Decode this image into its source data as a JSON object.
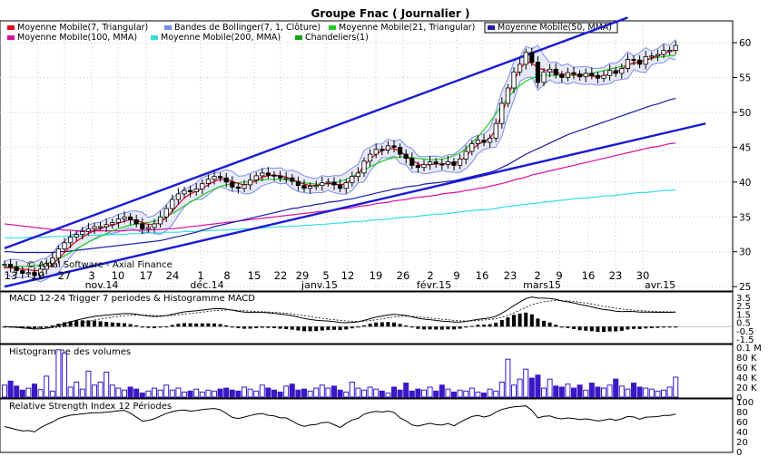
{
  "title": "Groupe Fnac  ( Journalier )",
  "watermark": "© Axial Software - Axial Finance",
  "legend": [
    {
      "label": "Moyenne Mobile(7, Triangular)",
      "color": "#e8001c",
      "selected": false
    },
    {
      "label": "Bandes de Bollinger(7, 1, Clôture)",
      "color": "#7a8ce8",
      "selected": false
    },
    {
      "label": "Moyenne Mobile(21, Triangular)",
      "color": "#22cc22",
      "selected": false
    },
    {
      "label": "Moyenne Mobile(50, MMA)",
      "color": "#1a1aa6",
      "selected": true
    },
    {
      "label": "Moyenne Mobile(100, MMA)",
      "color": "#d4119e",
      "selected": false
    },
    {
      "label": "Moyenne Mobile(200, MMA)",
      "color": "#33dde0",
      "selected": false
    },
    {
      "label": "Chandeliers(1)",
      "color": "#18a018",
      "selected": false
    }
  ],
  "panes": {
    "macd_title": "MACD 12-24   Trigger 7 periodes & Histogramme MACD",
    "volume_title": "Histogramme des volumes",
    "rsi_title": "Relative Strength Index 12 Périodes"
  },
  "chart_data": [
    {
      "type": "candlestick",
      "pane": "price",
      "x_day_labels": [
        "13",
        "20",
        "27",
        "3",
        "10",
        "17",
        "24",
        "1",
        "8",
        "15",
        "22",
        "29",
        "5",
        "12",
        "19",
        "26",
        "2",
        "9",
        "16",
        "23",
        "2",
        "9",
        "16",
        "23",
        "30"
      ],
      "x_month_labels": [
        "nov.14",
        "déc.14",
        "janv.15",
        "févr.15",
        "mars15",
        "avr.15"
      ],
      "y_ticks": [
        25,
        30,
        35,
        40,
        45,
        50,
        55,
        60
      ],
      "ylim": [
        24.5,
        63
      ],
      "close": [
        28.2,
        27.8,
        27.3,
        26.9,
        27.0,
        26.6,
        27.5,
        28.3,
        29.1,
        30.4,
        31.3,
        32.1,
        32.5,
        32.9,
        33.3,
        33.6,
        33.6,
        33.9,
        34.2,
        34.7,
        35.0,
        34.6,
        34.0,
        33.3,
        33.5,
        34.0,
        35.0,
        36.2,
        37.5,
        38.3,
        38.8,
        38.6,
        39.0,
        39.8,
        40.4,
        40.8,
        40.6,
        40.0,
        39.3,
        39.1,
        39.6,
        40.3,
        40.9,
        41.3,
        41.0,
        40.9,
        40.6,
        40.6,
        40.1,
        39.5,
        39.1,
        39.4,
        39.5,
        39.9,
        40.0,
        39.6,
        39.1,
        39.9,
        40.8,
        41.3,
        43.0,
        44.0,
        44.7,
        44.6,
        45.2,
        45.0,
        44.0,
        43.4,
        42.4,
        42.1,
        42.5,
        42.9,
        42.6,
        42.5,
        42.9,
        42.4,
        43.3,
        44.4,
        45.5,
        46.0,
        45.7,
        46.3,
        48.4,
        51.3,
        53.5,
        55.8,
        56.9,
        58.6,
        57.2,
        54.3,
        55.8,
        56.2,
        55.4,
        55.0,
        55.7,
        55.5,
        55.1,
        55.6,
        55.3,
        54.9,
        55.3,
        56.0,
        55.6,
        56.3,
        57.6,
        57.5,
        56.9,
        58.0,
        58.1,
        58.3,
        58.9,
        58.9,
        59.6
      ],
      "ma_7_triangular": [
        27.7,
        27.7,
        27.6,
        27.5,
        27.4,
        27.3,
        27.3,
        27.6,
        28.2,
        29.0,
        29.9,
        30.8,
        31.5,
        32.1,
        32.6,
        33.0,
        33.3,
        33.6,
        33.8,
        34.1,
        34.4,
        34.6,
        34.5,
        34.2,
        33.9,
        33.9,
        34.2,
        34.9,
        35.8,
        36.8,
        37.7,
        38.3,
        38.7,
        39.1,
        39.6,
        40.1,
        40.4,
        40.4,
        40.1,
        39.8,
        39.6,
        39.8,
        40.2,
        40.7,
        40.9,
        41.0,
        40.9,
        40.7,
        40.4,
        40.0,
        39.7,
        39.5,
        39.5,
        39.7,
        39.8,
        39.7,
        39.6,
        39.8,
        40.4,
        41.2,
        42.3,
        43.3,
        44.0,
        44.5,
        44.8,
        44.8,
        44.4,
        43.8,
        43.1,
        42.6,
        42.4,
        42.5,
        42.6,
        42.6,
        42.7,
        42.7,
        43.0,
        43.7,
        44.6,
        45.4,
        45.8,
        46.3,
        47.6,
        49.8,
        52.2,
        54.5,
        56.2,
        57.2,
        57.1,
        56.4,
        56.1,
        55.9,
        55.7,
        55.5,
        55.5,
        55.4,
        55.3,
        55.3,
        55.2,
        55.1,
        55.2,
        55.6,
        55.8,
        56.2,
        56.8,
        57.1,
        57.2,
        57.5,
        57.8,
        58.1,
        58.5,
        58.7,
        59.0
      ],
      "ma_21_triangular": [
        27.9,
        27.9,
        27.9,
        27.9,
        27.9,
        28.0,
        28.1,
        28.3,
        28.6,
        29.0,
        29.4,
        29.9,
        30.4,
        30.9,
        31.4,
        31.8,
        32.2,
        32.6,
        33.0,
        33.3,
        33.6,
        33.8,
        34.0,
        34.1,
        34.2,
        34.4,
        34.6,
        35.0,
        35.5,
        36.0,
        36.6,
        37.1,
        37.6,
        38.1,
        38.6,
        39.0,
        39.4,
        39.6,
        39.8,
        39.9,
        40.0,
        40.1,
        40.2,
        40.3,
        40.4,
        40.4,
        40.4,
        40.3,
        40.2,
        40.0,
        39.9,
        39.8,
        39.7,
        39.7,
        39.8,
        39.9,
        40.1,
        40.4,
        40.8,
        41.2,
        41.7,
        42.2,
        42.6,
        43.0,
        43.3,
        43.5,
        43.6,
        43.6,
        43.5,
        43.4,
        43.3,
        43.2,
        43.2,
        43.3,
        43.5,
        43.8,
        44.2,
        44.8,
        45.6,
        46.5,
        47.5,
        48.6,
        49.8,
        51.0,
        52.1,
        53.1,
        53.9,
        54.5,
        54.9,
        55.2,
        55.3,
        55.3,
        55.3,
        55.3,
        55.3,
        55.3,
        55.4,
        55.5,
        55.6,
        55.8,
        56.0,
        56.2,
        56.4,
        56.6,
        56.8,
        57.0,
        57.2,
        57.5,
        57.7,
        57.9,
        58.0,
        58.1,
        58.2
      ],
      "ma_50": [
        30.0,
        30.0,
        29.9,
        29.9,
        29.9,
        29.9,
        29.9,
        29.9,
        29.9,
        30.0,
        30.0,
        30.1,
        30.2,
        30.3,
        30.4,
        30.5,
        30.6,
        30.7,
        30.8,
        30.9,
        31.0,
        31.1,
        31.2,
        31.3,
        31.4,
        31.5,
        31.6,
        31.8,
        32.0,
        32.2,
        32.4,
        32.6,
        32.8,
        33.1,
        33.3,
        33.6,
        33.8,
        34.0,
        34.2,
        34.4,
        34.6,
        34.8,
        35.0,
        35.2,
        35.4,
        35.6,
        35.8,
        36.0,
        36.2,
        36.3,
        36.5,
        36.6,
        36.8,
        36.9,
        37.1,
        37.2,
        37.3,
        37.5,
        37.6,
        37.8,
        38.0,
        38.2,
        38.4,
        38.6,
        38.8,
        39.0,
        39.1,
        39.3,
        39.4,
        39.5,
        39.7,
        39.8,
        39.9,
        40.0,
        40.1,
        40.2,
        40.4,
        40.6,
        40.8,
        41.0,
        41.2,
        41.4,
        41.7,
        42.1,
        42.5,
        43.0,
        43.5,
        44.0,
        44.4,
        44.8,
        45.2,
        45.6,
        46.0,
        46.4,
        46.8,
        47.1,
        47.4,
        47.7,
        48.0,
        48.3,
        48.6,
        48.9,
        49.2,
        49.5,
        49.8,
        50.1,
        50.4,
        50.7,
        51.0,
        51.2,
        51.5,
        51.8,
        52.0
      ],
      "ma_100": [
        34.0,
        33.9,
        33.8,
        33.7,
        33.6,
        33.5,
        33.4,
        33.3,
        33.2,
        33.2,
        33.1,
        33.1,
        33.0,
        33.0,
        33.0,
        33.0,
        33.0,
        33.0,
        33.0,
        33.0,
        33.0,
        33.1,
        33.1,
        33.1,
        33.1,
        33.2,
        33.2,
        33.3,
        33.3,
        33.4,
        33.5,
        33.6,
        33.7,
        33.8,
        33.9,
        34.0,
        34.1,
        34.2,
        34.3,
        34.4,
        34.5,
        34.6,
        34.7,
        34.8,
        34.9,
        35.0,
        35.1,
        35.2,
        35.3,
        35.4,
        35.5,
        35.6,
        35.7,
        35.8,
        35.9,
        36.0,
        36.1,
        36.2,
        36.3,
        36.5,
        36.6,
        36.7,
        36.9,
        37.0,
        37.1,
        37.3,
        37.4,
        37.5,
        37.7,
        37.8,
        37.9,
        38.0,
        38.1,
        38.3,
        38.4,
        38.5,
        38.6,
        38.8,
        38.9,
        39.1,
        39.2,
        39.4,
        39.6,
        39.8,
        40.0,
        40.3,
        40.5,
        40.7,
        41.0,
        41.2,
        41.4,
        41.6,
        41.8,
        42.0,
        42.2,
        42.4,
        42.6,
        42.8,
        43.0,
        43.2,
        43.4,
        43.6,
        43.8,
        44.0,
        44.2,
        44.4,
        44.6,
        44.8,
        45.0,
        45.1,
        45.3,
        45.5,
        45.6
      ],
      "ma_200": [
        32.0,
        32.0,
        32.0,
        32.0,
        32.1,
        32.1,
        32.1,
        32.1,
        32.2,
        32.2,
        32.2,
        32.3,
        32.3,
        32.3,
        32.3,
        32.4,
        32.4,
        32.4,
        32.5,
        32.5,
        32.5,
        32.6,
        32.6,
        32.6,
        32.7,
        32.7,
        32.7,
        32.8,
        32.8,
        32.8,
        32.9,
        32.9,
        32.9,
        33.0,
        33.0,
        33.1,
        33.1,
        33.1,
        33.2,
        33.2,
        33.3,
        33.3,
        33.4,
        33.4,
        33.5,
        33.5,
        33.6,
        33.6,
        33.7,
        33.7,
        33.8,
        33.8,
        33.9,
        33.9,
        34.0,
        34.1,
        34.1,
        34.2,
        34.3,
        34.3,
        34.4,
        34.5,
        34.6,
        34.6,
        34.7,
        34.8,
        34.9,
        35.0,
        35.0,
        35.1,
        35.2,
        35.3,
        35.4,
        35.4,
        35.5,
        35.6,
        35.7,
        35.8,
        35.9,
        36.0,
        36.0,
        36.1,
        36.2,
        36.4,
        36.5,
        36.6,
        36.7,
        36.8,
        36.9,
        37.0,
        37.1,
        37.2,
        37.3,
        37.4,
        37.5,
        37.6,
        37.7,
        37.7,
        37.8,
        37.9,
        38.0,
        38.0,
        38.1,
        38.2,
        38.3,
        38.4,
        38.5,
        38.5,
        38.6,
        38.7,
        38.8,
        38.8,
        38.9
      ],
      "trend_upper": {
        "from": [
          0,
          30.5
        ],
        "to": [
          104,
          63.6
        ]
      },
      "trend_lower": {
        "from": [
          0,
          25.0
        ],
        "to": [
          117,
          48.4
        ]
      }
    },
    {
      "type": "line+bar",
      "pane": "macd",
      "y_ticks": [
        3.5,
        2.5,
        1.5,
        0.5,
        -0.5,
        -1.5
      ],
      "ylim": [
        -1.8,
        3.8
      ]
    },
    {
      "type": "bar",
      "pane": "volume",
      "y_ticks": [
        "0.1 M",
        "80 K",
        "60 K",
        "40 K",
        "20 K",
        "0"
      ],
      "ylim": [
        0,
        100000
      ],
      "values": [
        24000,
        32000,
        22000,
        14000,
        18000,
        26000,
        15000,
        42000,
        12000,
        95000,
        88000,
        20000,
        30000,
        16000,
        52000,
        24000,
        30000,
        50000,
        24000,
        18000,
        14000,
        20000,
        16000,
        8000,
        12000,
        18000,
        14000,
        24000,
        14000,
        18000,
        10000,
        12000,
        16000,
        10000,
        14000,
        12000,
        16000,
        18000,
        14000,
        12000,
        20000,
        16000,
        12000,
        24000,
        18000,
        14000,
        10000,
        22000,
        26000,
        14000,
        16000,
        12000,
        18000,
        24000,
        18000,
        22000,
        14000,
        10000,
        30000,
        18000,
        14000,
        20000,
        16000,
        12000,
        8000,
        20000,
        14000,
        28000,
        12000,
        16000,
        14000,
        20000,
        12000,
        24000,
        16000,
        10000,
        14000,
        12000,
        18000,
        10000,
        8000,
        16000,
        12000,
        30000,
        76000,
        24000,
        36000,
        56000,
        38000,
        44000,
        18000,
        36000,
        22000,
        20000,
        26000,
        18000,
        24000,
        14000,
        28000,
        20000,
        18000,
        24000,
        36000,
        22000,
        16000,
        28000,
        20000,
        18000,
        16000,
        12000,
        14000,
        20000,
        40000
      ]
    },
    {
      "type": "line",
      "pane": "rsi",
      "y_ticks": [
        100,
        80,
        60,
        40,
        20,
        0
      ],
      "ylim": [
        0,
        100
      ]
    }
  ]
}
